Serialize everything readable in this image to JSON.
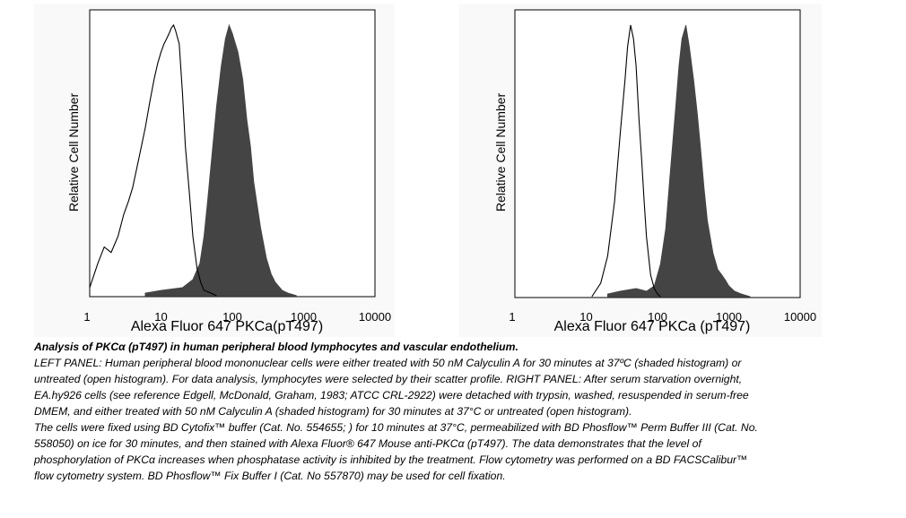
{
  "colors": {
    "filled": "#444444",
    "outline": "#000000",
    "panel_bg": "#f9f9f9"
  },
  "chart_data": [
    {
      "type": "area",
      "panel": "left",
      "xlabel": "Alexa Fluor 647 PKCa(pT497)",
      "ylabel": "Relative Cell Number",
      "xscale": "log",
      "xlim": [
        1,
        10000
      ],
      "x_ticks": [
        "1",
        "10",
        "100",
        "1000",
        "10000"
      ],
      "ylim": [
        0,
        1
      ],
      "series": [
        {
          "style": "outline",
          "x": [
            1,
            1.3,
            1.6,
            2,
            2.5,
            3,
            3.5,
            4,
            5,
            6,
            7,
            8,
            9,
            10,
            11,
            12,
            13,
            14,
            15,
            16,
            18,
            20,
            22,
            25,
            28,
            32,
            36,
            40,
            50,
            60
          ],
          "y": [
            0.03,
            0.12,
            0.18,
            0.16,
            0.22,
            0.3,
            0.35,
            0.4,
            0.52,
            0.62,
            0.72,
            0.8,
            0.86,
            0.9,
            0.93,
            0.95,
            0.97,
            0.99,
            1.0,
            0.98,
            0.93,
            0.75,
            0.55,
            0.38,
            0.22,
            0.1,
            0.05,
            0.02,
            0.01,
            0.0
          ]
        },
        {
          "style": "filled",
          "x": [
            6,
            10,
            20,
            28,
            35,
            40,
            45,
            50,
            60,
            70,
            80,
            90,
            100,
            120,
            140,
            160,
            180,
            200,
            250,
            300,
            350,
            400,
            500,
            600,
            700,
            800
          ],
          "y": [
            0.01,
            0.02,
            0.03,
            0.06,
            0.12,
            0.22,
            0.35,
            0.48,
            0.7,
            0.85,
            0.95,
            1.0,
            0.97,
            0.9,
            0.8,
            0.65,
            0.55,
            0.42,
            0.25,
            0.14,
            0.08,
            0.05,
            0.02,
            0.01,
            0.005,
            0.0
          ]
        }
      ]
    },
    {
      "type": "area",
      "panel": "right",
      "xlabel": "Alexa Fluor 647 PKCa (pT497)",
      "ylabel": "Relative Cell Number",
      "xscale": "log",
      "xlim": [
        1,
        10000
      ],
      "x_ticks": [
        "1",
        "10",
        "100",
        "1000",
        "10000"
      ],
      "ylim": [
        0,
        1
      ],
      "series": [
        {
          "style": "outline",
          "x": [
            12,
            16,
            20,
            25,
            30,
            35,
            38,
            42,
            46,
            50,
            55,
            60,
            65,
            70,
            80,
            90,
            100,
            110
          ],
          "y": [
            0.0,
            0.05,
            0.15,
            0.35,
            0.6,
            0.8,
            0.92,
            1.0,
            0.95,
            0.85,
            0.65,
            0.5,
            0.35,
            0.22,
            0.08,
            0.03,
            0.01,
            0.0
          ]
        },
        {
          "style": "filled",
          "x": [
            20,
            30,
            50,
            70,
            90,
            110,
            130,
            150,
            180,
            200,
            220,
            250,
            280,
            320,
            360,
            400,
            450,
            500,
            600,
            700,
            800,
            900,
            1000,
            1200,
            1500,
            2000
          ],
          "y": [
            0.01,
            0.02,
            0.03,
            0.02,
            0.04,
            0.12,
            0.25,
            0.45,
            0.7,
            0.85,
            0.95,
            1.0,
            0.92,
            0.8,
            0.68,
            0.55,
            0.4,
            0.28,
            0.16,
            0.1,
            0.08,
            0.06,
            0.04,
            0.02,
            0.01,
            0.0
          ]
        }
      ]
    }
  ],
  "caption": {
    "title": "Analysis of PKCα (pT497) in human peripheral blood lymphocytes and vascular endothelium.",
    "para1": "LEFT PANEL: Human peripheral blood mononuclear cells were either treated with 50 nM Calyculin A for 30 minutes at 37ºC (shaded histogram) or untreated (open histogram). For data analysis, lymphocytes were selected by their scatter profile. RIGHT PANEL: After serum starvation overnight, EA.hy926 cells (see reference Edgell, McDonald, Graham, 1983; ATCC CRL-2922) were detached with trypsin, washed, resuspended in serum-free DMEM, and either treated with 50 nM Calyculin A (shaded histogram) for 30 minutes at 37°C or untreated (open histogram).",
    "para2": "The cells were fixed using BD Cytofix™ buffer (Cat. No. 554655; ) for 10 minutes at 37°C, permeabilized with BD Phosflow™ Perm Buffer III (Cat. No. 558050) on ice for 30 minutes, and then stained with Alexa Fluor® 647 Mouse anti-PKCα (pT497). The data demonstrates that the level of phosphorylation of PKCα increases when phosphatase activity is inhibited by the treatment.  Flow cytometry was performed on a BD FACSCalibur™ flow cytometry system. BD Phosflow™ Fix Buffer I (Cat. No 557870) may be used for cell fixation."
  }
}
